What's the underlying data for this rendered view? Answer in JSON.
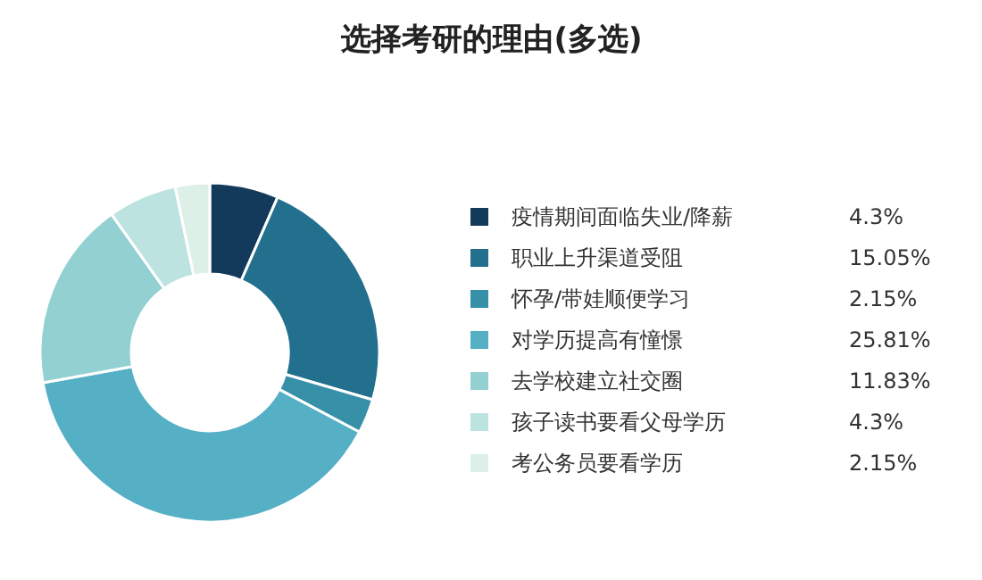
{
  "chart_data": {
    "type": "donut",
    "title": "选择考研的理由(多选)",
    "categories": [
      "疫情期间面临失业/降薪",
      "职业上升渠道受阻",
      "怀孕/带娃顺便学习",
      "对学历提高有憧憬",
      "去学校建立社交圈",
      "孩子读书要看父母学历",
      "考公务员要看学历"
    ],
    "values": [
      4.3,
      15.05,
      2.15,
      25.81,
      11.83,
      4.3,
      2.15
    ],
    "value_labels": [
      "4.3%",
      "15.05%",
      "2.15%",
      "25.81%",
      "11.83%",
      "4.3%",
      "2.15%"
    ],
    "colors": [
      "#133a5a",
      "#22708d",
      "#3590a8",
      "#55afc5",
      "#92d0d2",
      "#bde3e1",
      "#ddf0e8"
    ],
    "legend": "right"
  }
}
